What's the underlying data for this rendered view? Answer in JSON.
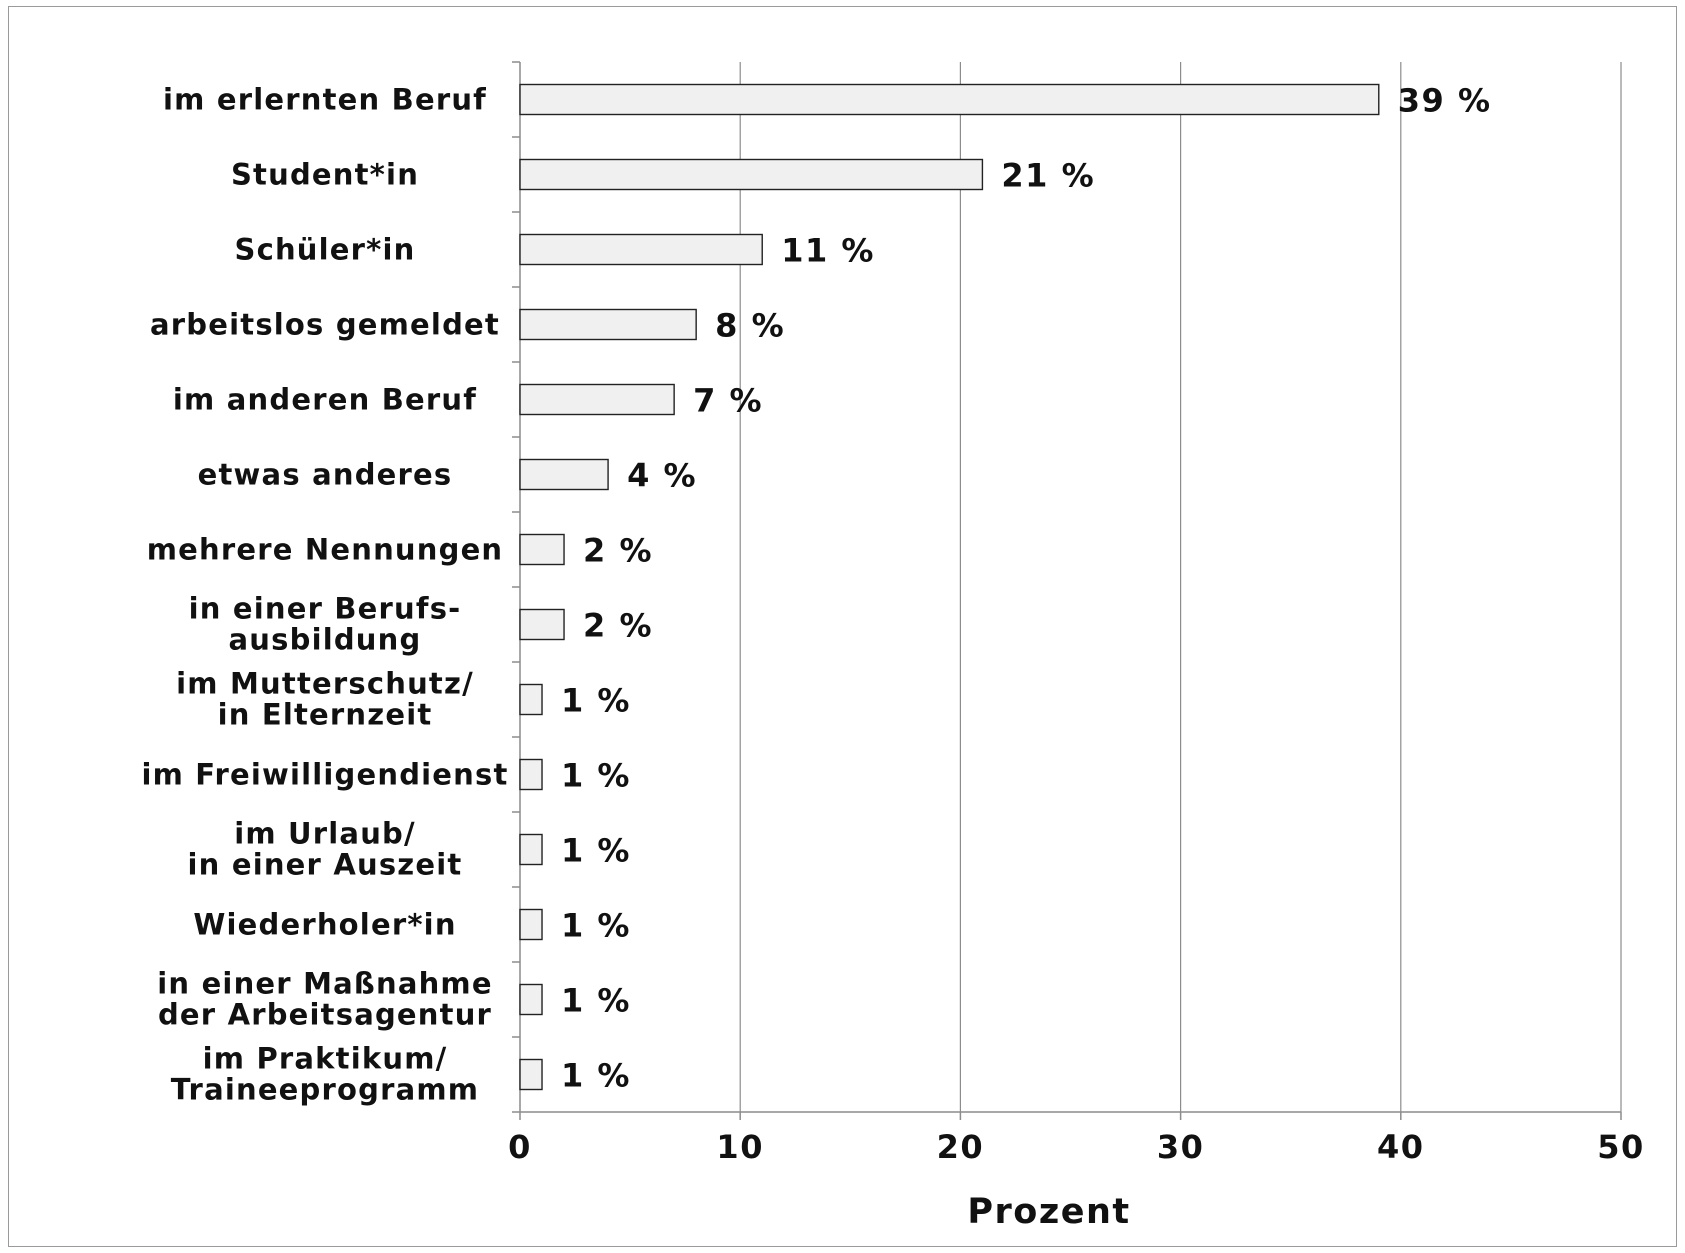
{
  "chart_data": {
    "type": "bar",
    "orientation": "horizontal",
    "categories": [
      [
        "im erlernten Beruf"
      ],
      [
        "Student*in"
      ],
      [
        "Schüler*in"
      ],
      [
        "arbeitslos gemeldet"
      ],
      [
        "im anderen Beruf"
      ],
      [
        "etwas anderes"
      ],
      [
        "mehrere Nennungen"
      ],
      [
        "in einer Berufs-",
        "ausbildung"
      ],
      [
        "im Mutterschutz/",
        "in Elternzeit"
      ],
      [
        "im Freiwilligendienst"
      ],
      [
        "im Urlaub/",
        "in einer Auszeit"
      ],
      [
        "Wiederholer*in"
      ],
      [
        "in einer Maßnahme",
        "der Arbeitsagentur"
      ],
      [
        "im Praktikum/",
        "Traineeprogramm"
      ]
    ],
    "values": [
      39,
      21,
      11,
      8,
      7,
      4,
      2,
      2,
      1,
      1,
      1,
      1,
      1,
      1
    ],
    "value_labels": [
      "39 %",
      "21 %",
      "11 %",
      "8 %",
      "7 %",
      "4 %",
      "2 %",
      "2 %",
      "1 %",
      "1 %",
      "1 %",
      "1 %",
      "1 %",
      "1 %"
    ],
    "xlim": [
      0,
      50
    ],
    "xticks": [
      0,
      10,
      20,
      30,
      40,
      50
    ],
    "xtick_labels": [
      "0",
      "10",
      "20",
      "30",
      "40",
      "50"
    ],
    "xlabel": "Prozent",
    "ylabel": "",
    "title": "",
    "grid": "vertical",
    "legend": "none",
    "bar_fill": "#f0f0f0",
    "bar_stroke": "#222222",
    "grid_color": "#8c8c8c"
  }
}
